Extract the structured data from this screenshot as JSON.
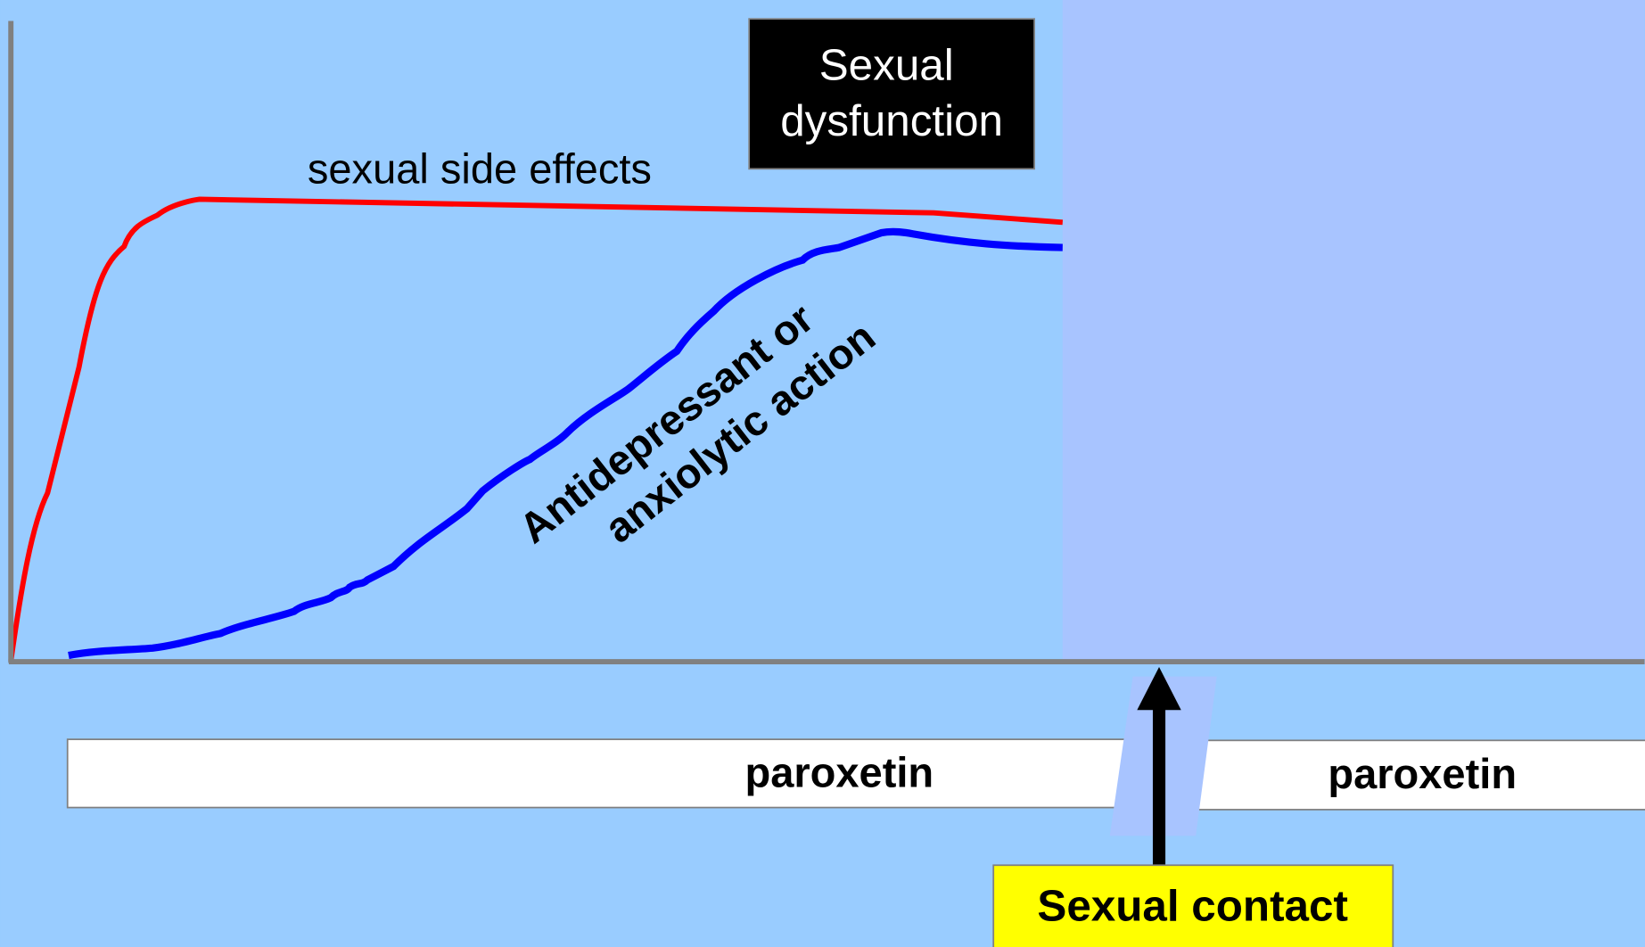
{
  "annotations": {
    "dysfunction_box": [
      "Sexual",
      "dysfunction"
    ],
    "side_effects_label": "sexual side effects",
    "action_label": [
      "Antidepressant or",
      "anxiolytic action"
    ]
  },
  "drug_bars": [
    {
      "label": "paroxetin"
    },
    {
      "label": "paroxetin"
    }
  ],
  "event_label": "Sexual contact"
}
